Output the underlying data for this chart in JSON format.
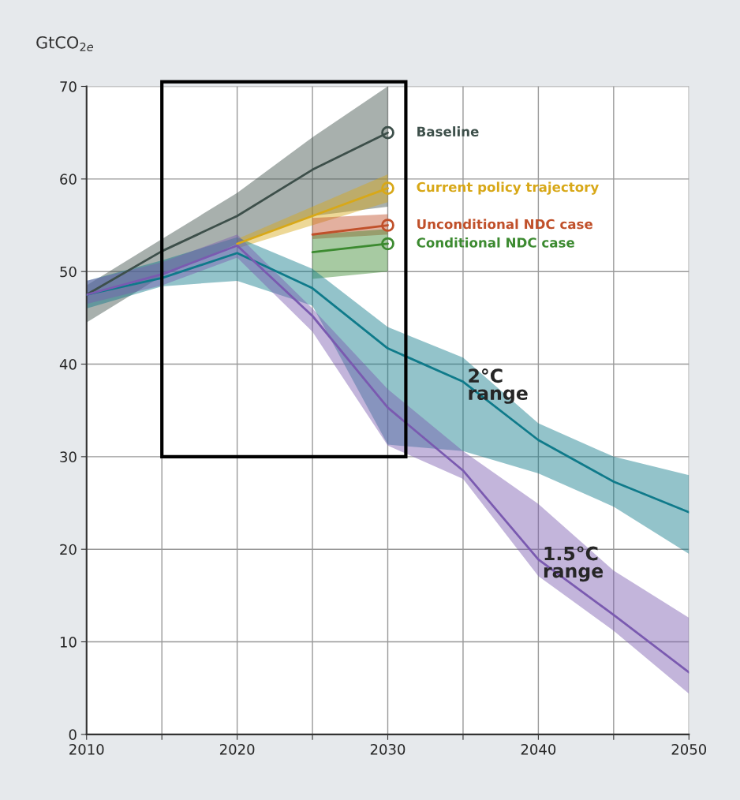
{
  "chart_data": {
    "type": "line",
    "ylabel": "GtCO$_{2e}$",
    "xlim": [
      2010,
      2050
    ],
    "ylim": [
      0,
      70
    ],
    "xticks": [
      2010,
      {
        "value": 2015,
        "label": null
      },
      2020,
      {
        "value": 2025,
        "label": null
      },
      2030,
      {
        "value": 2035,
        "label": null
      },
      2040,
      {
        "value": 2045,
        "label": null
      },
      2050
    ],
    "yticks": [
      0,
      10,
      20,
      30,
      40,
      50,
      60,
      70
    ],
    "grid": true,
    "series": [
      {
        "name": "Baseline",
        "color": "#3d4f4a",
        "x": [
          2010,
          2015,
          2020,
          2025,
          2030
        ],
        "values": [
          47.5,
          52.2,
          56,
          61,
          65
        ],
        "lower": [
          44.5,
          49.5,
          53,
          56,
          57
        ],
        "upper": [
          48.5,
          53.5,
          58.5,
          64.5,
          70
        ]
      },
      {
        "name": "Current policy trajectory",
        "color": "#d8a818",
        "x": [
          2020,
          2025,
          2030
        ],
        "values": [
          53,
          56,
          59
        ],
        "lower": [
          52.5,
          55,
          57.5
        ],
        "upper": [
          53.5,
          57,
          60.5
        ]
      },
      {
        "name": "Unconditional NDC case",
        "color": "#c0502a",
        "x": [
          2025,
          2030
        ],
        "values": [
          54,
          55
        ],
        "lower": [
          53.5,
          54
        ],
        "upper": [
          55.8,
          56.2
        ]
      },
      {
        "name": "Conditional NDC case",
        "color": "#3c8a30",
        "x": [
          2025,
          2030
        ],
        "values": [
          52.1,
          53
        ],
        "lower": [
          49.2,
          50
        ],
        "upper": [
          54,
          54.6
        ]
      },
      {
        "color": "#0f7a8a",
        "x": [
          2010,
          2015,
          2020,
          2025,
          2030,
          2035,
          2040,
          2045,
          2050
        ],
        "values": [
          47.5,
          49.3,
          52,
          48.2,
          41.7,
          38.1,
          31.8,
          27.3,
          24
        ],
        "lower": [
          46,
          48.4,
          49,
          46.3,
          31.3,
          30.6,
          28.2,
          24.6,
          19.5
        ],
        "upper": [
          49,
          51.2,
          53.7,
          50.3,
          44,
          40.7,
          33.6,
          30,
          28
        ]
      },
      {
        "color": "#7a5ab0",
        "x": [
          2010,
          2015,
          2020,
          2025,
          2030,
          2035,
          2040,
          2045,
          2050
        ],
        "values": [
          47.5,
          49.7,
          52.8,
          45.2,
          35.3,
          28.5,
          18.9,
          12.9,
          6.7
        ],
        "lower": [
          46.5,
          48.5,
          51.5,
          43.5,
          31.2,
          27.6,
          17.1,
          11.2,
          4.4
        ],
        "upper": [
          49,
          51,
          54,
          46,
          37.3,
          30.6,
          24.9,
          17.7,
          12.6
        ]
      }
    ],
    "annotations": [
      {
        "text": "2°C\nrange",
        "x": 2035,
        "y": 38.1
      },
      {
        "text": "1.5°C\nrange",
        "x": 2040,
        "y": 18.9
      }
    ]
  }
}
